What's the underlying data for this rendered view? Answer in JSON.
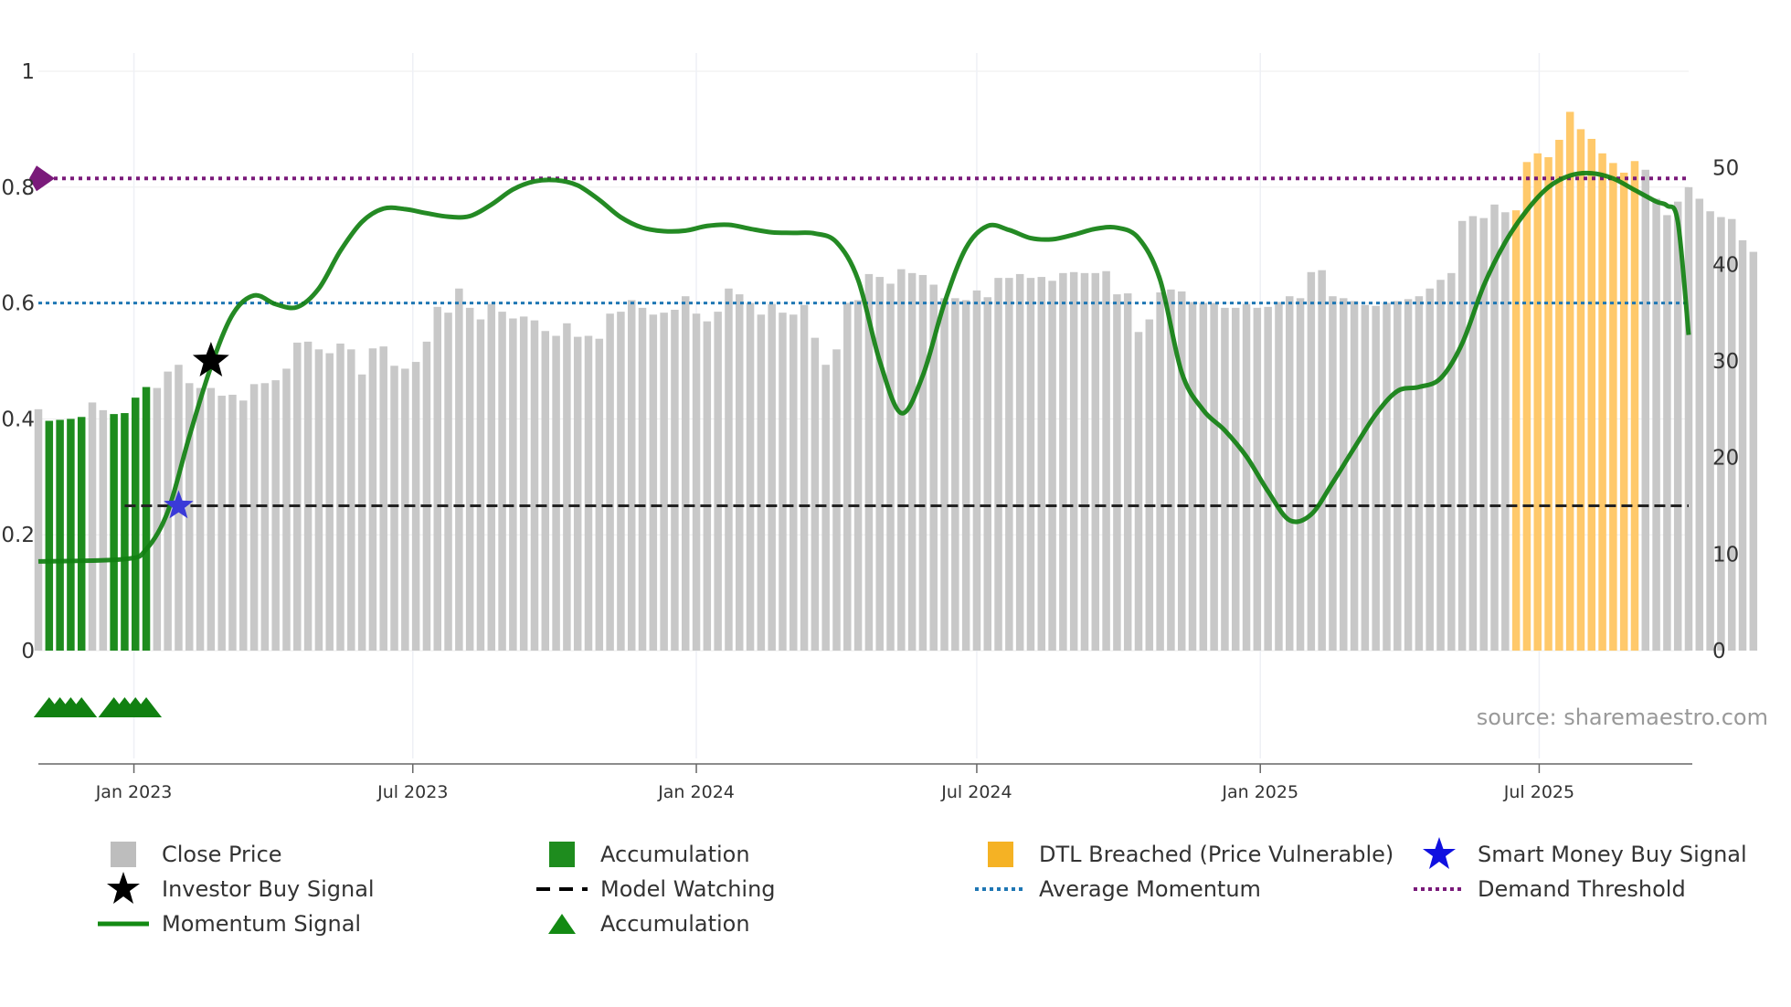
{
  "chart_data": {
    "type": "bar",
    "title": "",
    "xlabel": "",
    "ylabel_left": "",
    "ylabel_right": "",
    "left_axis": {
      "range": [
        0,
        1
      ],
      "ticks": [
        0,
        0.2,
        0.4,
        0.6,
        0.8,
        1
      ],
      "tick_labels": [
        "0",
        "0.2",
        "0.4",
        "0.6",
        "0.8",
        "1"
      ]
    },
    "right_axis": {
      "range": [
        0,
        60
      ],
      "ticks": [
        0,
        10,
        20,
        30,
        40,
        50
      ],
      "tick_labels": [
        "0",
        "10",
        "20",
        "30",
        "40",
        "50"
      ]
    },
    "x_axis": {
      "start": "2022-10-31",
      "end": "2025-10-06",
      "ticks": [
        {
          "date": "2023-01-01",
          "label": "Jan 2023"
        },
        {
          "date": "2023-07-01",
          "label": "Jul 2023"
        },
        {
          "date": "2024-01-01",
          "label": "Jan 2024"
        },
        {
          "date": "2024-07-01",
          "label": "Jul 2024"
        },
        {
          "date": "2025-01-01",
          "label": "Jan 2025"
        },
        {
          "date": "2025-07-01",
          "label": "Jul 2025"
        }
      ]
    },
    "grid": true,
    "close_price": {
      "name": "Close Price",
      "start_date": "2022-10-31",
      "interval_days": 7,
      "values": [
        25,
        23.8,
        23.9,
        24,
        24.2,
        25.7,
        24.9,
        24.5,
        24.6,
        26.2,
        27.3,
        27.2,
        28.9,
        29.6,
        27.7,
        27.2,
        27.2,
        26.4,
        26.5,
        25.9,
        27.6,
        27.7,
        28,
        29.2,
        31.9,
        32,
        31.2,
        30.8,
        31.8,
        31.2,
        28.6,
        31.3,
        31.5,
        29.5,
        29.2,
        29.9,
        32,
        35.6,
        35,
        37.5,
        35.5,
        34.3,
        35.9,
        35.1,
        34.4,
        34.6,
        34.2,
        33.1,
        32.6,
        33.9,
        32.5,
        32.6,
        32.3,
        34.9,
        35.1,
        36.3,
        35.5,
        34.8,
        35,
        35.3,
        36.7,
        34.9,
        34.1,
        35.1,
        37.5,
        36.9,
        36,
        34.8,
        35.9,
        35,
        34.8,
        35.8,
        32.4,
        29.6,
        31.2,
        36,
        36.3,
        39,
        38.7,
        38,
        39.5,
        39.1,
        38.9,
        37.9,
        36.5,
        36.5,
        36.3,
        37.3,
        36.6,
        38.6,
        38.6,
        39,
        38.6,
        38.7,
        38.3,
        39.1,
        39.2,
        39.1,
        39.1,
        39.3,
        36.9,
        37,
        33,
        34.3,
        37.1,
        37.4,
        37.2,
        36.1,
        36,
        36,
        35.5,
        35.5,
        35.9,
        35.5,
        35.6,
        36.1,
        36.7,
        36.5,
        39.2,
        39.4,
        36.7,
        36.5,
        36.2,
        35.8,
        35.7,
        36,
        36.2,
        36.4,
        36.7,
        37.5,
        38.4,
        39.1,
        44.5,
        45,
        44.8,
        46.2,
        45.4,
        45.6,
        50.6,
        51.5,
        51.1,
        52.9,
        55.8,
        54,
        53,
        51.5,
        50.5,
        49.5,
        50.7,
        49.8,
        46.8,
        45.1,
        46.5,
        48,
        46.8,
        45.5,
        44.9,
        44.7,
        42.5,
        41.3
      ]
    },
    "accumulation_bars": {
      "name": "Accumulation",
      "start_index": 1,
      "end_index": 10,
      "exclude_indices": [
        5,
        6
      ]
    },
    "dtl_breached": {
      "name": "DTL Breached (Price Vulnerable)",
      "start_index": 137,
      "end_index": 148
    },
    "momentum_signal": {
      "name": "Momentum Signal",
      "axis": "left",
      "points": [
        [
          "2022-10-31",
          0.154
        ],
        [
          "2022-12-26",
          0.158
        ],
        [
          "2023-01-09",
          0.175
        ],
        [
          "2023-01-23",
          0.24
        ],
        [
          "2023-02-06",
          0.37
        ],
        [
          "2023-02-20",
          0.49
        ],
        [
          "2023-03-06",
          0.58
        ],
        [
          "2023-03-20",
          0.613
        ],
        [
          "2023-04-03",
          0.598
        ],
        [
          "2023-04-17",
          0.593
        ],
        [
          "2023-05-01",
          0.625
        ],
        [
          "2023-05-15",
          0.69
        ],
        [
          "2023-05-29",
          0.74
        ],
        [
          "2023-06-12",
          0.763
        ],
        [
          "2023-06-26",
          0.762
        ],
        [
          "2023-07-10",
          0.755
        ],
        [
          "2023-07-24",
          0.749
        ],
        [
          "2023-08-07",
          0.75
        ],
        [
          "2023-08-21",
          0.77
        ],
        [
          "2023-09-04",
          0.796
        ],
        [
          "2023-09-18",
          0.81
        ],
        [
          "2023-10-02",
          0.812
        ],
        [
          "2023-10-16",
          0.803
        ],
        [
          "2023-10-30",
          0.778
        ],
        [
          "2023-11-13",
          0.748
        ],
        [
          "2023-11-27",
          0.73
        ],
        [
          "2023-12-11",
          0.724
        ],
        [
          "2023-12-25",
          0.725
        ],
        [
          "2024-01-08",
          0.733
        ],
        [
          "2024-01-22",
          0.735
        ],
        [
          "2024-02-05",
          0.728
        ],
        [
          "2024-02-19",
          0.722
        ],
        [
          "2024-03-04",
          0.721
        ],
        [
          "2024-03-18",
          0.72
        ],
        [
          "2024-04-01",
          0.705
        ],
        [
          "2024-04-15",
          0.64
        ],
        [
          "2024-04-29",
          0.5
        ],
        [
          "2024-05-13",
          0.41
        ],
        [
          "2024-05-27",
          0.475
        ],
        [
          "2024-06-10",
          0.6
        ],
        [
          "2024-06-24",
          0.695
        ],
        [
          "2024-07-08",
          0.733
        ],
        [
          "2024-07-22",
          0.726
        ],
        [
          "2024-08-05",
          0.712
        ],
        [
          "2024-08-19",
          0.71
        ],
        [
          "2024-09-02",
          0.718
        ],
        [
          "2024-09-16",
          0.728
        ],
        [
          "2024-09-30",
          0.73
        ],
        [
          "2024-10-14",
          0.712
        ],
        [
          "2024-10-28",
          0.64
        ],
        [
          "2024-11-11",
          0.48
        ],
        [
          "2024-11-25",
          0.415
        ],
        [
          "2024-12-09",
          0.38
        ],
        [
          "2024-12-23",
          0.335
        ],
        [
          "2025-01-06",
          0.275
        ],
        [
          "2025-01-20",
          0.225
        ],
        [
          "2025-02-03",
          0.235
        ],
        [
          "2025-02-17",
          0.29
        ],
        [
          "2025-03-03",
          0.35
        ],
        [
          "2025-03-17",
          0.408
        ],
        [
          "2025-03-31",
          0.448
        ],
        [
          "2025-04-14",
          0.455
        ],
        [
          "2025-04-28",
          0.47
        ],
        [
          "2025-05-12",
          0.53
        ],
        [
          "2025-05-26",
          0.63
        ],
        [
          "2025-06-09",
          0.705
        ],
        [
          "2025-06-23",
          0.76
        ],
        [
          "2025-07-07",
          0.8
        ],
        [
          "2025-07-21",
          0.82
        ],
        [
          "2025-08-04",
          0.824
        ],
        [
          "2025-08-18",
          0.815
        ],
        [
          "2025-09-01",
          0.795
        ],
        [
          "2025-09-15",
          0.775
        ],
        [
          "2025-09-22",
          0.768
        ],
        [
          "2025-09-29",
          0.74
        ],
        [
          "2025-10-06",
          0.545
        ]
      ]
    },
    "average_momentum": {
      "name": "Average Momentum",
      "value": 0.6
    },
    "demand_threshold": {
      "name": "Demand Threshold",
      "value": 0.815
    },
    "model_watching": {
      "name": "Model Watching",
      "value": 0.25,
      "start_date": "2022-12-26",
      "end_date": "2025-10-06"
    },
    "investor_buy_signal": {
      "name": "Investor Buy Signal",
      "date": "2023-02-20",
      "value": 0.5
    },
    "smart_money_buy_signal": {
      "name": "Smart Money Buy Signal",
      "date": "2023-01-30",
      "value": 0.25
    },
    "accumulation_markers": {
      "name": "Accumulation",
      "dates": [
        "2022-11-07",
        "2022-11-14",
        "2022-11-21",
        "2022-11-28",
        "2022-12-19",
        "2022-12-26",
        "2023-01-02",
        "2023-01-09"
      ]
    },
    "source": "source: sharemaestro.com"
  },
  "legend": [
    {
      "label": "Close Price",
      "symbol": "square",
      "color": "#bdbdbd"
    },
    {
      "label": "Accumulation",
      "symbol": "square",
      "color": "#1e8c1e"
    },
    {
      "label": "DTL Breached (Price Vulnerable)",
      "symbol": "square",
      "color": "#f5b224"
    },
    {
      "label": "Smart Money Buy Signal",
      "symbol": "star",
      "color": "#1010e0"
    },
    {
      "label": "Investor Buy Signal",
      "symbol": "star",
      "color": "#000000"
    },
    {
      "label": "Model Watching",
      "symbol": "dash",
      "color": "#000000"
    },
    {
      "label": "Average Momentum",
      "symbol": "dot",
      "color": "#1f77b4"
    },
    {
      "label": "Demand Threshold",
      "symbol": "dot",
      "color": "#7a1a7a"
    },
    {
      "label": "Momentum Signal",
      "symbol": "line",
      "color": "#138a13"
    },
    {
      "label": "Accumulation",
      "symbol": "triangle",
      "color": "#138a13"
    }
  ],
  "colors": {
    "close_price": "#c8c8c8",
    "accumulation": "#1e8c1e",
    "dtl": "#ffc96b",
    "momentum": "#118011",
    "average_momentum": "#1f77b4",
    "demand_threshold": "#7a1a7a",
    "model_watching": "#222222",
    "smart_money": "#3a3ad8",
    "investor": "#000000",
    "source_text": "#999999"
  }
}
